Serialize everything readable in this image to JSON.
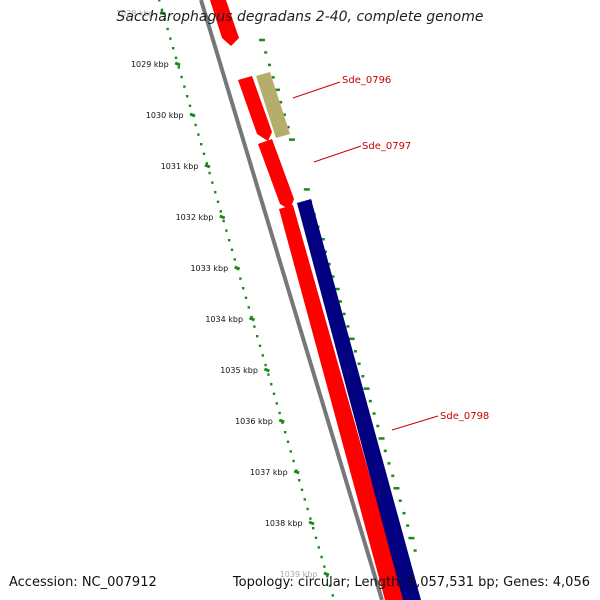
{
  "title": "Saccharophagus degradans 2-40, complete genome",
  "footer": {
    "accession": "Accession: NC_007912",
    "summary": "Topology: circular; Length: 5,057,531 bp; Genes: 4,056"
  },
  "colors": {
    "gene_red": "#ff0000",
    "gene_olive": "#b5ad6b",
    "gene_navy": "#000080",
    "backbone": "#777777",
    "ticks": "#1a8a1a",
    "label": "#cc0000"
  },
  "axis": {
    "unit": "kbp",
    "ticks": [
      "1028 kbp",
      "1029 kbp",
      "1030 kbp",
      "1031 kbp",
      "1032 kbp",
      "1033 kbp",
      "1034 kbp",
      "1035 kbp",
      "1036 kbp",
      "1037 kbp",
      "1038 kbp",
      "1039 kbp"
    ]
  },
  "genes": [
    {
      "name": "Sde_0796",
      "color": "olive"
    },
    {
      "name": "Sde_0797",
      "color": "red"
    },
    {
      "name": "Sde_0798",
      "color": "navy"
    }
  ]
}
